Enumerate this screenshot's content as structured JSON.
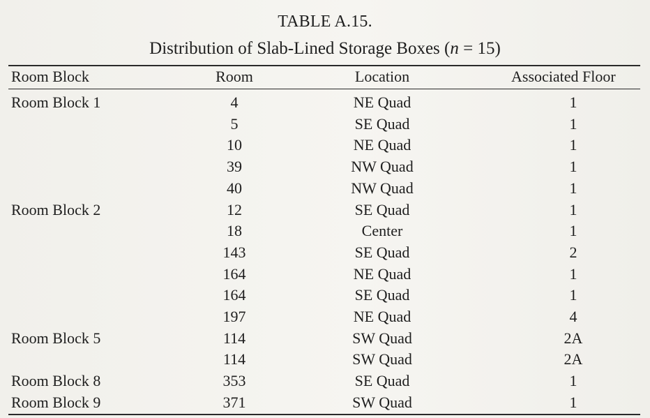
{
  "table_label": "TABLE A.15.",
  "caption_before": "Distribution of Slab-Lined Storage Boxes (",
  "caption_n": "n",
  "caption_after": " = 15)",
  "headers": {
    "room_block": "Room Block",
    "room": "Room",
    "location": "Location",
    "floor": "Associated Floor"
  },
  "rows": [
    {
      "block": "Room Block 1",
      "room": "4",
      "location": "NE Quad",
      "floor": "1"
    },
    {
      "block": "",
      "room": "5",
      "location": "SE Quad",
      "floor": "1"
    },
    {
      "block": "",
      "room": "10",
      "location": "NE Quad",
      "floor": "1"
    },
    {
      "block": "",
      "room": "39",
      "location": "NW Quad",
      "floor": "1"
    },
    {
      "block": "",
      "room": "40",
      "location": "NW Quad",
      "floor": "1"
    },
    {
      "block": "Room Block 2",
      "room": "12",
      "location": "SE Quad",
      "floor": "1"
    },
    {
      "block": "",
      "room": "18",
      "location": "Center",
      "floor": "1"
    },
    {
      "block": "",
      "room": "143",
      "location": "SE Quad",
      "floor": "2"
    },
    {
      "block": "",
      "room": "164",
      "location": "NE Quad",
      "floor": "1"
    },
    {
      "block": "",
      "room": "164",
      "location": "SE Quad",
      "floor": "1"
    },
    {
      "block": "",
      "room": "197",
      "location": "NE Quad",
      "floor": "4"
    },
    {
      "block": "Room Block 5",
      "room": "114",
      "location": "SW Quad",
      "floor": "2A"
    },
    {
      "block": "",
      "room": "114",
      "location": "SW Quad",
      "floor": "2A"
    },
    {
      "block": "Room Block 8",
      "room": "353",
      "location": "SE Quad",
      "floor": "1"
    },
    {
      "block": "Room Block 9",
      "room": "371",
      "location": "SW Quad",
      "floor": "1"
    }
  ]
}
